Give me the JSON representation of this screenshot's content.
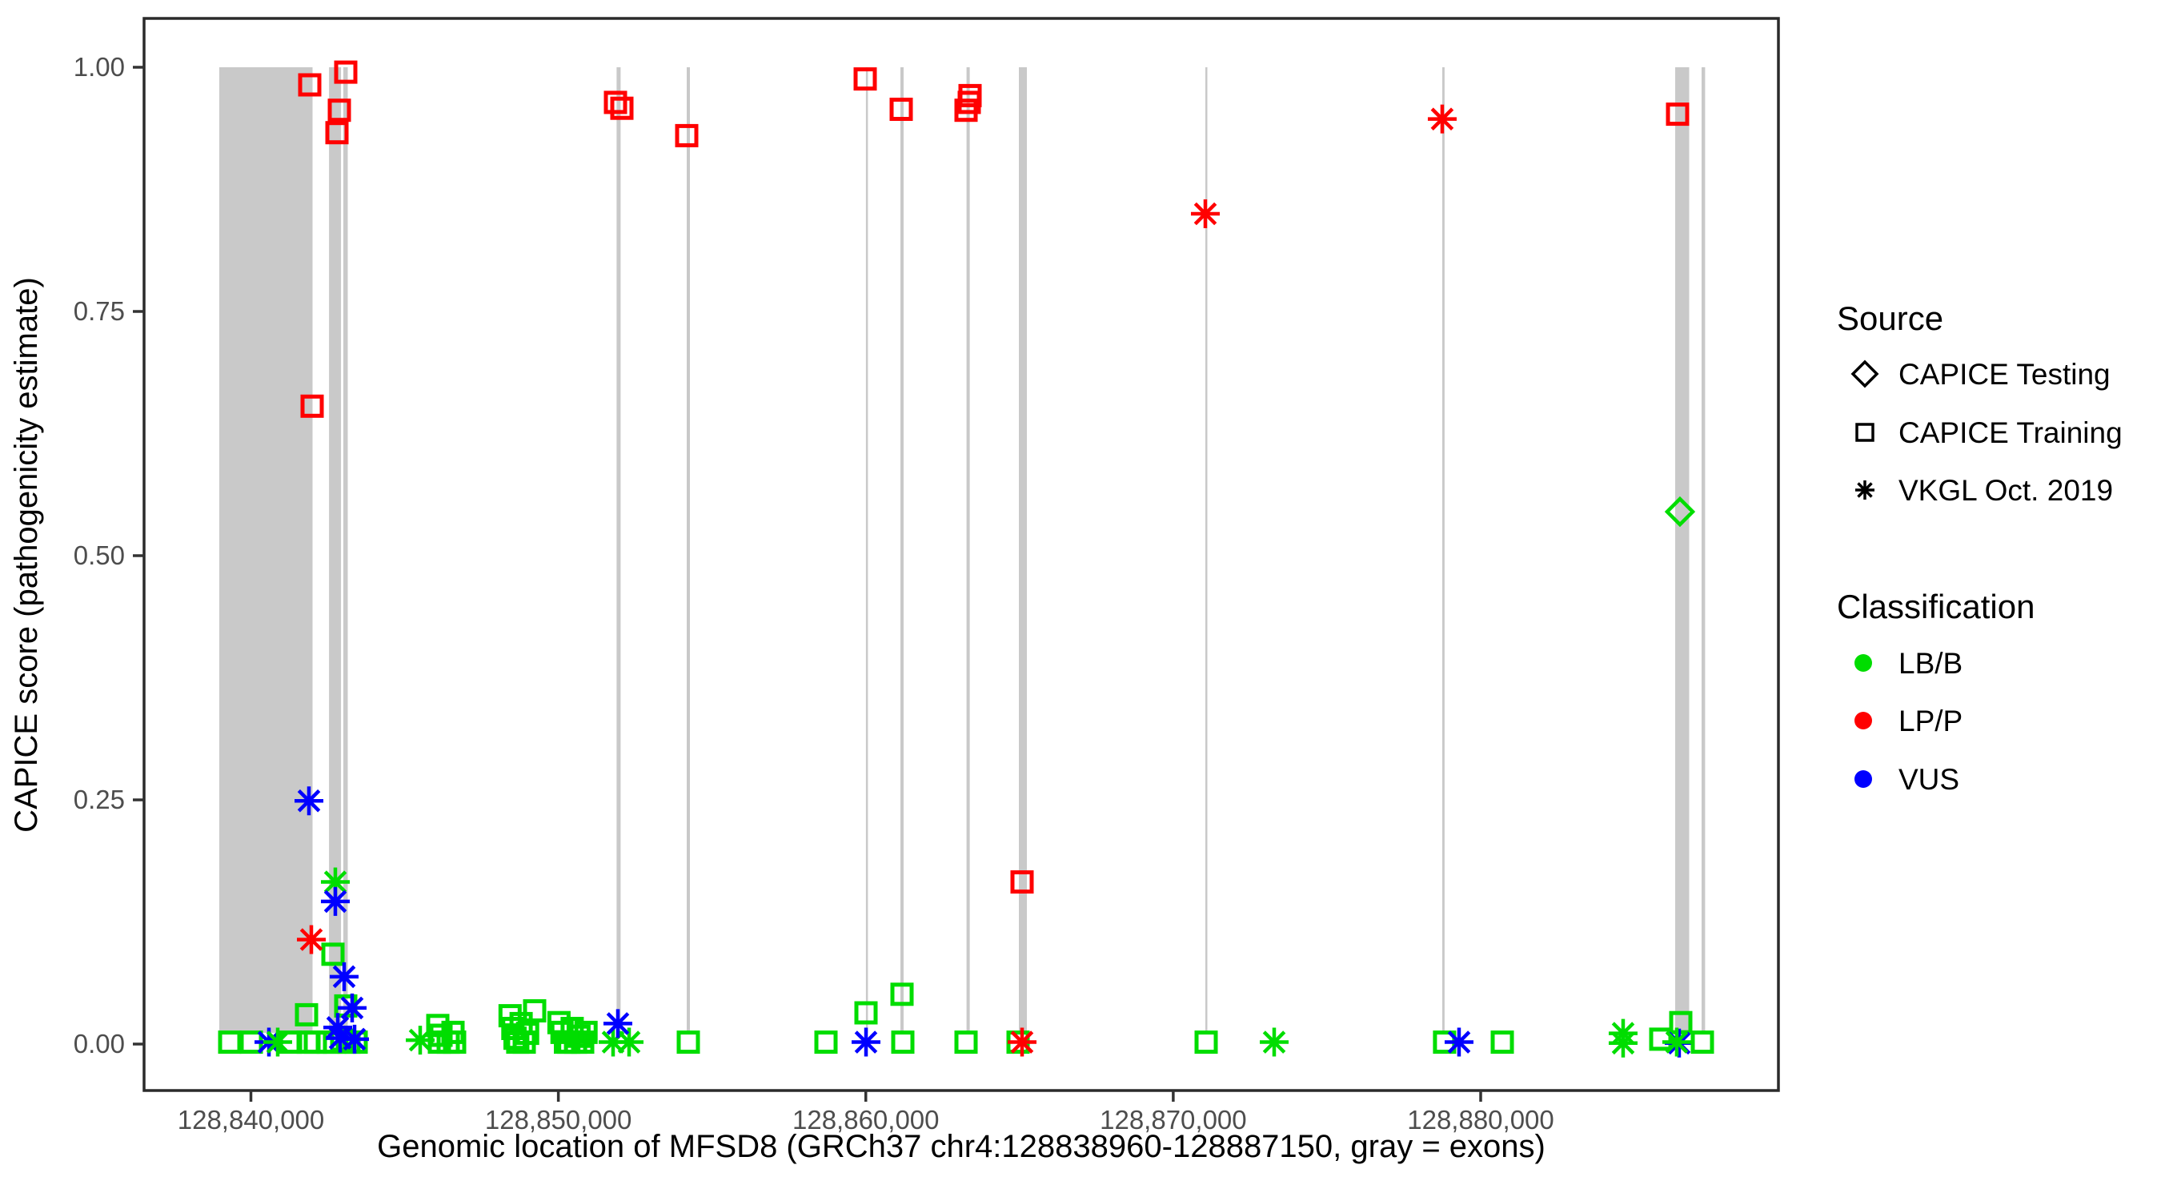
{
  "chart_data": {
    "type": "scatter",
    "title": "",
    "xlabel": "Genomic location of MFSD8 (GRCh37 chr4:128838960-128887150, gray = exons)",
    "ylabel": "CAPICE score (pathogenicity estimate)",
    "x_domain": [
      128836525,
      128889683
    ],
    "y_domain": [
      -0.047,
      1.05
    ],
    "grid": "off",
    "legend_position": "right",
    "exon_color": "#c9c9c9",
    "panel_border_color": "#2a2a2a",
    "tick_color": "#333333",
    "x_ticks": [
      {
        "value": 128840000,
        "label": "128,840,000"
      },
      {
        "value": 128850000,
        "label": "128,850,000"
      },
      {
        "value": 128860000,
        "label": "128,860,000"
      },
      {
        "value": 128870000,
        "label": "128,870,000"
      },
      {
        "value": 128880000,
        "label": "128,880,000"
      }
    ],
    "y_ticks": [
      {
        "value": 0.0,
        "label": "0.00"
      },
      {
        "value": 0.25,
        "label": "0.25"
      },
      {
        "value": 0.5,
        "label": "0.50"
      },
      {
        "value": 0.75,
        "label": "0.75"
      },
      {
        "value": 1.0,
        "label": "1.00"
      }
    ],
    "classification_colors": {
      "LB/B": "#00dd00",
      "LP/P": "#ff0000",
      "VUS": "#0000ff"
    },
    "source_shapes": {
      "testing": "diamond",
      "training": "square",
      "vkgl": "asterisk"
    },
    "exons_bp": [
      [
        128838970,
        128842005
      ],
      [
        128842540,
        128842930
      ],
      [
        128843005,
        128843150
      ],
      [
        128851895,
        128852025
      ],
      [
        128854175,
        128854280
      ],
      [
        128860005,
        128860070
      ],
      [
        128861125,
        128861230
      ],
      [
        128863275,
        128863380
      ],
      [
        128864980,
        128865240
      ],
      [
        128871045,
        128871110
      ],
      [
        128878750,
        128878825
      ],
      [
        128886325,
        128886780
      ],
      [
        128887185,
        128887300
      ]
    ],
    "points": [
      {
        "bp": 128839310,
        "score": 0.002,
        "cls": "LB/B",
        "src": "training"
      },
      {
        "bp": 128840013,
        "score": 0.002,
        "cls": "LB/B",
        "src": "training"
      },
      {
        "bp": 128840586,
        "score": 0.002,
        "cls": "VUS",
        "src": "vkgl"
      },
      {
        "bp": 128840872,
        "score": 0.002,
        "cls": "LB/B",
        "src": "vkgl"
      },
      {
        "bp": 128841289,
        "score": 0.002,
        "cls": "LB/B",
        "src": "training"
      },
      {
        "bp": 128841809,
        "score": 0.03,
        "cls": "LB/B",
        "src": "training"
      },
      {
        "bp": 128841861,
        "score": 0.002,
        "cls": "LB/B",
        "src": "training"
      },
      {
        "bp": 128842096,
        "score": 0.002,
        "cls": "LB/B",
        "src": "training"
      },
      {
        "bp": 128842512,
        "score": 0.002,
        "cls": "LB/B",
        "src": "training"
      },
      {
        "bp": 128842720,
        "score": 0.002,
        "cls": "LB/B",
        "src": "training"
      },
      {
        "bp": 128842955,
        "score": 0.004,
        "cls": "LB/B",
        "src": "training"
      },
      {
        "bp": 128843189,
        "score": 0.002,
        "cls": "LB/B",
        "src": "training"
      },
      {
        "bp": 128843423,
        "score": 0.002,
        "cls": "LB/B",
        "src": "training"
      },
      {
        "bp": 128842668,
        "score": 0.092,
        "cls": "LB/B",
        "src": "training"
      },
      {
        "bp": 128843085,
        "score": 0.039,
        "cls": "LB/B",
        "src": "training"
      },
      {
        "bp": 128841965,
        "score": 0.107,
        "cls": "LP/P",
        "src": "vkgl"
      },
      {
        "bp": 128841887,
        "score": 0.249,
        "cls": "VUS",
        "src": "vkgl"
      },
      {
        "bp": 128842746,
        "score": 0.166,
        "cls": "LB/B",
        "src": "vkgl"
      },
      {
        "bp": 128842746,
        "score": 0.146,
        "cls": "VUS",
        "src": "vkgl"
      },
      {
        "bp": 128843033,
        "score": 0.069,
        "cls": "VUS",
        "src": "vkgl"
      },
      {
        "bp": 128843293,
        "score": 0.037,
        "cls": "VUS",
        "src": "vkgl"
      },
      {
        "bp": 128842825,
        "score": 0.017,
        "cls": "VUS",
        "src": "vkgl"
      },
      {
        "bp": 128842903,
        "score": 0.006,
        "cls": "VUS",
        "src": "vkgl"
      },
      {
        "bp": 128843371,
        "score": 0.005,
        "cls": "VUS",
        "src": "vkgl"
      },
      {
        "bp": 128841913,
        "score": 0.982,
        "cls": "LP/P",
        "src": "training"
      },
      {
        "bp": 128843085,
        "score": 0.995,
        "cls": "LP/P",
        "src": "training"
      },
      {
        "bp": 128842877,
        "score": 0.956,
        "cls": "LP/P",
        "src": "training"
      },
      {
        "bp": 128842799,
        "score": 0.933,
        "cls": "LP/P",
        "src": "training"
      },
      {
        "bp": 128841991,
        "score": 0.653,
        "cls": "LP/P",
        "src": "training"
      },
      {
        "bp": 128845506,
        "score": 0.004,
        "cls": "LB/B",
        "src": "vkgl"
      },
      {
        "bp": 128846079,
        "score": 0.019,
        "cls": "LB/B",
        "src": "training"
      },
      {
        "bp": 128846131,
        "score": 0.002,
        "cls": "LB/B",
        "src": "training"
      },
      {
        "bp": 128846183,
        "score": 0.009,
        "cls": "LB/B",
        "src": "training"
      },
      {
        "bp": 128846417,
        "score": 0.002,
        "cls": "LB/B",
        "src": "training"
      },
      {
        "bp": 128846573,
        "score": 0.012,
        "cls": "LB/B",
        "src": "training"
      },
      {
        "bp": 128846625,
        "score": 0.002,
        "cls": "LB/B",
        "src": "training"
      },
      {
        "bp": 128848430,
        "score": 0.029,
        "cls": "LB/B",
        "src": "training"
      },
      {
        "bp": 128848520,
        "score": 0.016,
        "cls": "LB/B",
        "src": "training"
      },
      {
        "bp": 128848590,
        "score": 0.006,
        "cls": "LB/B",
        "src": "training"
      },
      {
        "bp": 128848680,
        "score": 0.002,
        "cls": "LB/B",
        "src": "training"
      },
      {
        "bp": 128848790,
        "score": 0.021,
        "cls": "LB/B",
        "src": "training"
      },
      {
        "bp": 128848890,
        "score": 0.002,
        "cls": "LB/B",
        "src": "training"
      },
      {
        "bp": 128849000,
        "score": 0.011,
        "cls": "LB/B",
        "src": "training"
      },
      {
        "bp": 128849230,
        "score": 0.034,
        "cls": "LB/B",
        "src": "training"
      },
      {
        "bp": 128850020,
        "score": 0.022,
        "cls": "LB/B",
        "src": "training"
      },
      {
        "bp": 128850120,
        "score": 0.012,
        "cls": "LB/B",
        "src": "training"
      },
      {
        "bp": 128850230,
        "score": 0.002,
        "cls": "LB/B",
        "src": "training"
      },
      {
        "bp": 128850340,
        "score": 0.002,
        "cls": "LB/B",
        "src": "training"
      },
      {
        "bp": 128850450,
        "score": 0.016,
        "cls": "LB/B",
        "src": "training"
      },
      {
        "bp": 128850560,
        "score": 0.002,
        "cls": "LB/B",
        "src": "training"
      },
      {
        "bp": 128850670,
        "score": 0.008,
        "cls": "LB/B",
        "src": "training"
      },
      {
        "bp": 128850790,
        "score": 0.002,
        "cls": "LB/B",
        "src": "training"
      },
      {
        "bp": 128850900,
        "score": 0.012,
        "cls": "LB/B",
        "src": "training"
      },
      {
        "bp": 128851780,
        "score": 0.002,
        "cls": "LB/B",
        "src": "vkgl"
      },
      {
        "bp": 128852301,
        "score": 0.002,
        "cls": "LB/B",
        "src": "vkgl"
      },
      {
        "bp": 128851936,
        "score": 0.021,
        "cls": "VUS",
        "src": "vkgl"
      },
      {
        "bp": 128851858,
        "score": 0.964,
        "cls": "LP/P",
        "src": "training"
      },
      {
        "bp": 128852066,
        "score": 0.958,
        "cls": "LP/P",
        "src": "training"
      },
      {
        "bp": 128854175,
        "score": 0.93,
        "cls": "LP/P",
        "src": "training"
      },
      {
        "bp": 128854227,
        "score": 0.002,
        "cls": "LB/B",
        "src": "training"
      },
      {
        "bp": 128858704,
        "score": 0.002,
        "cls": "LB/B",
        "src": "training"
      },
      {
        "bp": 128859981,
        "score": 0.988,
        "cls": "LP/P",
        "src": "training"
      },
      {
        "bp": 128860007,
        "score": 0.032,
        "cls": "LB/B",
        "src": "training"
      },
      {
        "bp": 128860007,
        "score": 0.002,
        "cls": "VUS",
        "src": "vkgl"
      },
      {
        "bp": 128861152,
        "score": 0.957,
        "cls": "LP/P",
        "src": "training"
      },
      {
        "bp": 128861178,
        "score": 0.051,
        "cls": "LB/B",
        "src": "training"
      },
      {
        "bp": 128861204,
        "score": 0.002,
        "cls": "LB/B",
        "src": "training"
      },
      {
        "bp": 128863391,
        "score": 0.971,
        "cls": "LP/P",
        "src": "training"
      },
      {
        "bp": 128863365,
        "score": 0.964,
        "cls": "LP/P",
        "src": "training"
      },
      {
        "bp": 128863261,
        "score": 0.956,
        "cls": "LP/P",
        "src": "training"
      },
      {
        "bp": 128863261,
        "score": 0.002,
        "cls": "LB/B",
        "src": "training"
      },
      {
        "bp": 128865083,
        "score": 0.166,
        "cls": "LP/P",
        "src": "training"
      },
      {
        "bp": 128864953,
        "score": 0.002,
        "cls": "LB/B",
        "src": "training"
      },
      {
        "bp": 128865083,
        "score": 0.002,
        "cls": "LP/P",
        "src": "vkgl"
      },
      {
        "bp": 128871044,
        "score": 0.85,
        "cls": "LP/P",
        "src": "vkgl"
      },
      {
        "bp": 128871070,
        "score": 0.002,
        "cls": "LB/B",
        "src": "training"
      },
      {
        "bp": 128873283,
        "score": 0.002,
        "cls": "LB/B",
        "src": "vkgl"
      },
      {
        "bp": 128878749,
        "score": 0.947,
        "cls": "LP/P",
        "src": "vkgl"
      },
      {
        "bp": 128878827,
        "score": 0.002,
        "cls": "LB/B",
        "src": "training"
      },
      {
        "bp": 128879296,
        "score": 0.002,
        "cls": "VUS",
        "src": "vkgl"
      },
      {
        "bp": 128880702,
        "score": 0.002,
        "cls": "LB/B",
        "src": "training"
      },
      {
        "bp": 128884633,
        "score": 0.011,
        "cls": "LB/B",
        "src": "vkgl"
      },
      {
        "bp": 128884633,
        "score": 0.001,
        "cls": "LB/B",
        "src": "vkgl"
      },
      {
        "bp": 128885857,
        "score": 0.005,
        "cls": "LB/B",
        "src": "training"
      },
      {
        "bp": 128886507,
        "score": 0.022,
        "cls": "LB/B",
        "src": "training"
      },
      {
        "bp": 128886455,
        "score": 0.001,
        "cls": "VUS",
        "src": "vkgl"
      },
      {
        "bp": 128886377,
        "score": 0.002,
        "cls": "LB/B",
        "src": "vkgl"
      },
      {
        "bp": 128886403,
        "score": 0.952,
        "cls": "LP/P",
        "src": "training"
      },
      {
        "bp": 128886481,
        "score": 0.545,
        "cls": "LB/B",
        "src": "testing"
      },
      {
        "bp": 128887210,
        "score": 0.002,
        "cls": "LB/B",
        "src": "training"
      }
    ]
  },
  "legend_source": {
    "title": "Source",
    "items": [
      {
        "label": "CAPICE Testing",
        "symbol": "diamond-icon"
      },
      {
        "label": "CAPICE Training",
        "symbol": "square-icon"
      },
      {
        "label": "VKGL Oct. 2019",
        "symbol": "asterisk-icon"
      }
    ]
  },
  "legend_classification": {
    "title": "Classification",
    "items": [
      {
        "label": "LB/B",
        "color": "#00dd00"
      },
      {
        "label": "LP/P",
        "color": "#ff0000"
      },
      {
        "label": "VUS",
        "color": "#0000ff"
      }
    ]
  }
}
